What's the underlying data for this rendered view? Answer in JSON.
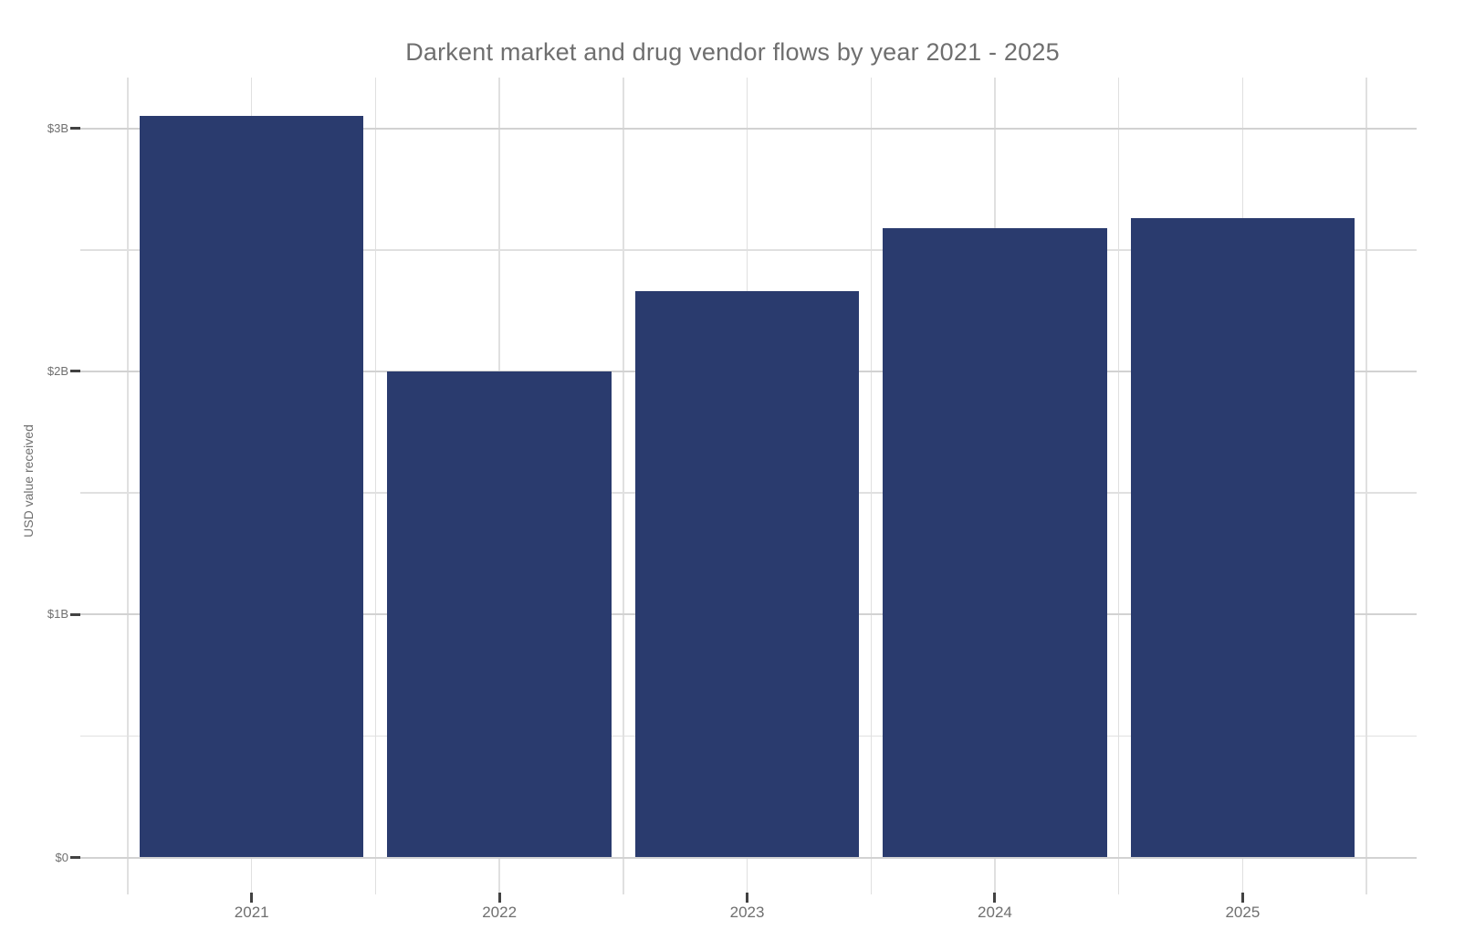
{
  "chart_data": {
    "type": "bar",
    "title": "Darkent market and drug vendor flows by year 2021 - 2025",
    "xlabel": "",
    "ylabel": "USD value received",
    "categories": [
      "2021",
      "2022",
      "2023",
      "2024",
      "2025"
    ],
    "values": [
      3.05,
      2.0,
      2.33,
      2.59,
      2.63
    ],
    "values_unit": "USD billions",
    "y_ticks": [
      {
        "value": 0,
        "label": "$0"
      },
      {
        "value": 1,
        "label": "$1B"
      },
      {
        "value": 2,
        "label": "$2B"
      },
      {
        "value": 3,
        "label": "$3B"
      }
    ],
    "y_minor_gridlines": [
      0.5,
      1.5,
      2.5
    ],
    "ylim": [
      -0.15,
      3.21
    ],
    "grid": true,
    "legend": "none",
    "colors": {
      "bar": "#2a3b6e",
      "background": "#ffffff",
      "grid_major": "#d2d2d2",
      "grid_minor": "#e0e0e0",
      "tick_mark": "#424242",
      "text": "#6f6f6f"
    }
  }
}
